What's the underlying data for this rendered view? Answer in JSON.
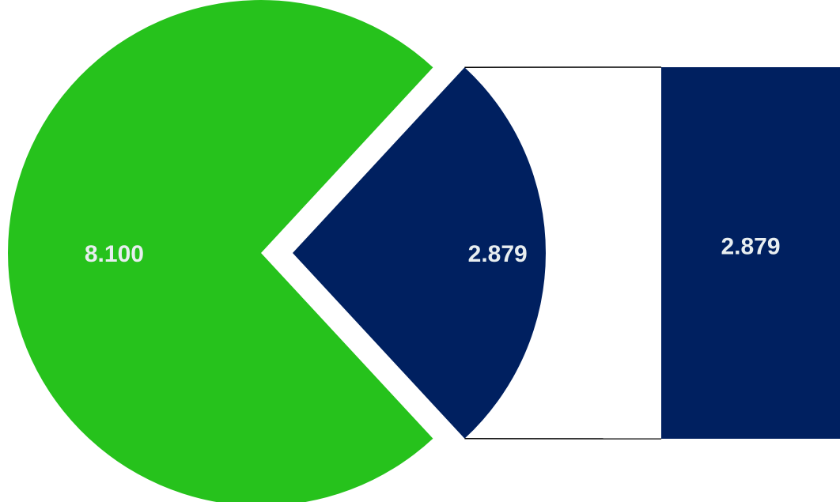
{
  "chart_data": {
    "type": "bar-of-pie",
    "pie": {
      "slices": [
        {
          "value": 8.1,
          "label": "8.100",
          "color": "#26c21c",
          "exploded": false
        },
        {
          "value": 2.879,
          "label": "2.879",
          "color": "#002060",
          "exploded": true
        }
      ]
    },
    "bar": {
      "segments": [
        {
          "value": 2.879,
          "label": "2.879",
          "color": "#002060"
        }
      ]
    },
    "connector_color": "#000000",
    "title": "",
    "legend": "none"
  }
}
